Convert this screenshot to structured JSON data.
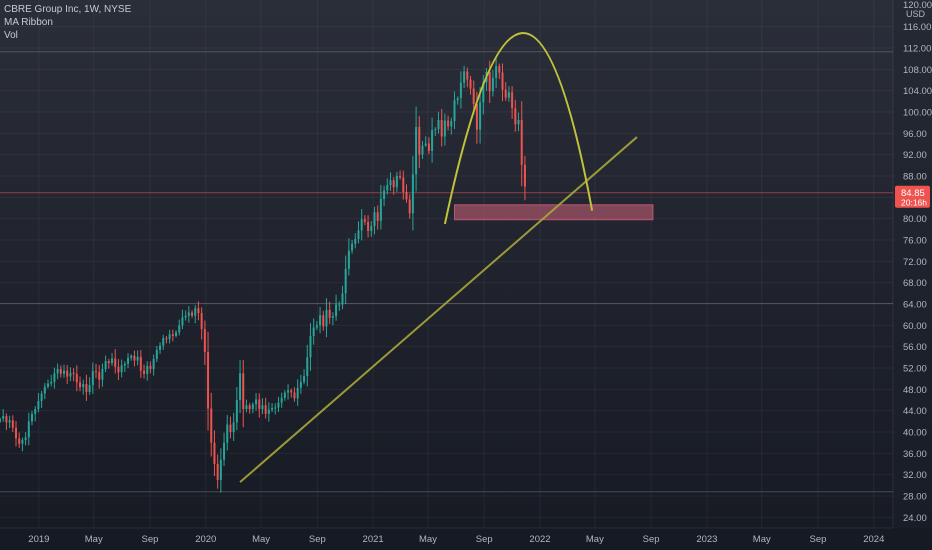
{
  "legend": {
    "title": "CBRE Group Inc, 1W, NYSE",
    "indicator_1": "MA Ribbon",
    "indicator_2": "Vol"
  },
  "colors": {
    "up": "#26a69a",
    "down": "#ef5350",
    "trendline": "#a8a73a",
    "arc": "#c2c23a",
    "zone": "#d0607a",
    "price_badge": "#ef5350",
    "axis_text": "#b2b5be"
  },
  "chart_data": {
    "type": "candlestick",
    "ticker": "CBRE Group Inc",
    "interval": "1W",
    "exchange": "NYSE",
    "currency": "USD",
    "y_range": [
      22,
      121
    ],
    "y_ticks": [
      24,
      28,
      32,
      36,
      40,
      44,
      48,
      52,
      56,
      60,
      64,
      68,
      72,
      76,
      80,
      84,
      88,
      92,
      96,
      100,
      104,
      108,
      112,
      116
    ],
    "y_tick_labels": [
      "24.00",
      "28.00",
      "32.00",
      "36.00",
      "40.00",
      "44.00",
      "48.00",
      "52.00",
      "56.00",
      "60.00",
      "64.00",
      "68.00",
      "72.00",
      "76.00",
      "80.00",
      "84.00",
      "88.00",
      "92.00",
      "96.00",
      "100.00",
      "104.00",
      "108.00",
      "112.00",
      "116.00"
    ],
    "y_top_partial_label": "120.00",
    "x_range": [
      "2018-10-08",
      "2024-02-12"
    ],
    "x_ticks": [
      {
        "date": "2019-01-01",
        "label": "2019"
      },
      {
        "date": "2019-05-01",
        "label": "May"
      },
      {
        "date": "2019-09-01",
        "label": "Sep"
      },
      {
        "date": "2020-01-01",
        "label": "2020"
      },
      {
        "date": "2020-05-01",
        "label": "May"
      },
      {
        "date": "2020-09-01",
        "label": "Sep"
      },
      {
        "date": "2021-01-01",
        "label": "2021"
      },
      {
        "date": "2021-05-01",
        "label": "May"
      },
      {
        "date": "2021-09-01",
        "label": "Sep"
      },
      {
        "date": "2022-01-01",
        "label": "2022"
      },
      {
        "date": "2022-05-01",
        "label": "May"
      },
      {
        "date": "2022-09-01",
        "label": "Sep"
      },
      {
        "date": "2023-01-01",
        "label": "2023"
      },
      {
        "date": "2023-05-01",
        "label": "May"
      },
      {
        "date": "2023-09-01",
        "label": "Sep"
      },
      {
        "date": "2024-01-01",
        "label": "2024"
      }
    ],
    "start_date": "2018-10-08",
    "weekly_close": [
      42.5,
      43.0,
      41.8,
      42.2,
      40.8,
      38.8,
      37.8,
      38.5,
      39.0,
      42.0,
      43.4,
      44.3,
      45.8,
      47.2,
      48.5,
      49.1,
      49.4,
      51.0,
      51.8,
      50.9,
      51.5,
      50.4,
      51.1,
      50.9,
      49.3,
      48.4,
      49.0,
      47.5,
      48.8,
      51.4,
      51.2,
      49.8,
      51.8,
      53.3,
      52.9,
      53.8,
      52.2,
      51.2,
      52.5,
      52.8,
      53.9,
      54.3,
      53.4,
      54.1,
      51.5,
      50.9,
      52.4,
      51.8,
      53.7,
      55.4,
      56.2,
      57.6,
      57.4,
      58.3,
      58.0,
      58.7,
      60.0,
      61.5,
      61.8,
      62.4,
      61.8,
      63.2,
      62.3,
      59.3,
      55.0,
      44.4,
      38.0,
      34.0,
      31.0,
      34.8,
      38.0,
      41.4,
      40.0,
      41.8,
      46.0,
      51.0,
      44.3,
      45.0,
      44.3,
      45.2,
      46.1,
      44.3,
      45.0,
      43.4,
      44.2,
      44.5,
      44.6,
      45.5,
      46.4,
      47.4,
      47.8,
      47.4,
      46.3,
      48.3,
      49.4,
      50.5,
      54.0,
      58.0,
      59.6,
      60.0,
      61.9,
      59.8,
      62.9,
      61.4,
      61.7,
      63.9,
      63.9,
      66.0,
      70.6,
      74.0,
      75.3,
      76.2,
      77.8,
      79.9,
      79.4,
      77.7,
      78.6,
      81.2,
      79.6,
      83.7,
      85.3,
      86.3,
      87.2,
      85.9,
      88.0,
      87.7,
      85.0,
      83.6,
      81.0,
      88.3,
      97.2,
      92.0,
      93.7,
      94.1,
      92.7,
      96.6,
      96.8,
      98.5,
      95.4,
      98.4,
      97.3,
      98.3,
      102.2,
      102.6,
      105.5,
      107.6,
      106.1,
      104.4,
      101.5,
      96.7,
      101.8,
      105.6,
      107.5,
      103.9,
      106.4,
      108.6,
      107.4,
      104.2,
      102.7,
      103.7,
      100.7,
      97.7,
      98.5,
      90.1,
      86.0
    ],
    "last_price": "84.85",
    "last_price_countdown": "20:16h",
    "annotations": {
      "trendline": {
        "from": {
          "date": "2020-03-16",
          "price": 30.6
        },
        "to": {
          "date": "2022-08-01",
          "price": 95.3
        }
      },
      "arc": {
        "from": {
          "date": "2021-06-07",
          "price": 79.0
        },
        "apex": {
          "date": "2021-11-22",
          "price": 114.8
        },
        "to": {
          "date": "2022-04-25",
          "price": 81.5
        }
      },
      "support_zone": {
        "from_date": "2021-06-28",
        "to_date": "2022-09-05",
        "low": 79.8,
        "high": 82.6
      },
      "horizontal_lines": [
        111.3,
        64.1,
        84.85,
        28.8
      ]
    }
  }
}
